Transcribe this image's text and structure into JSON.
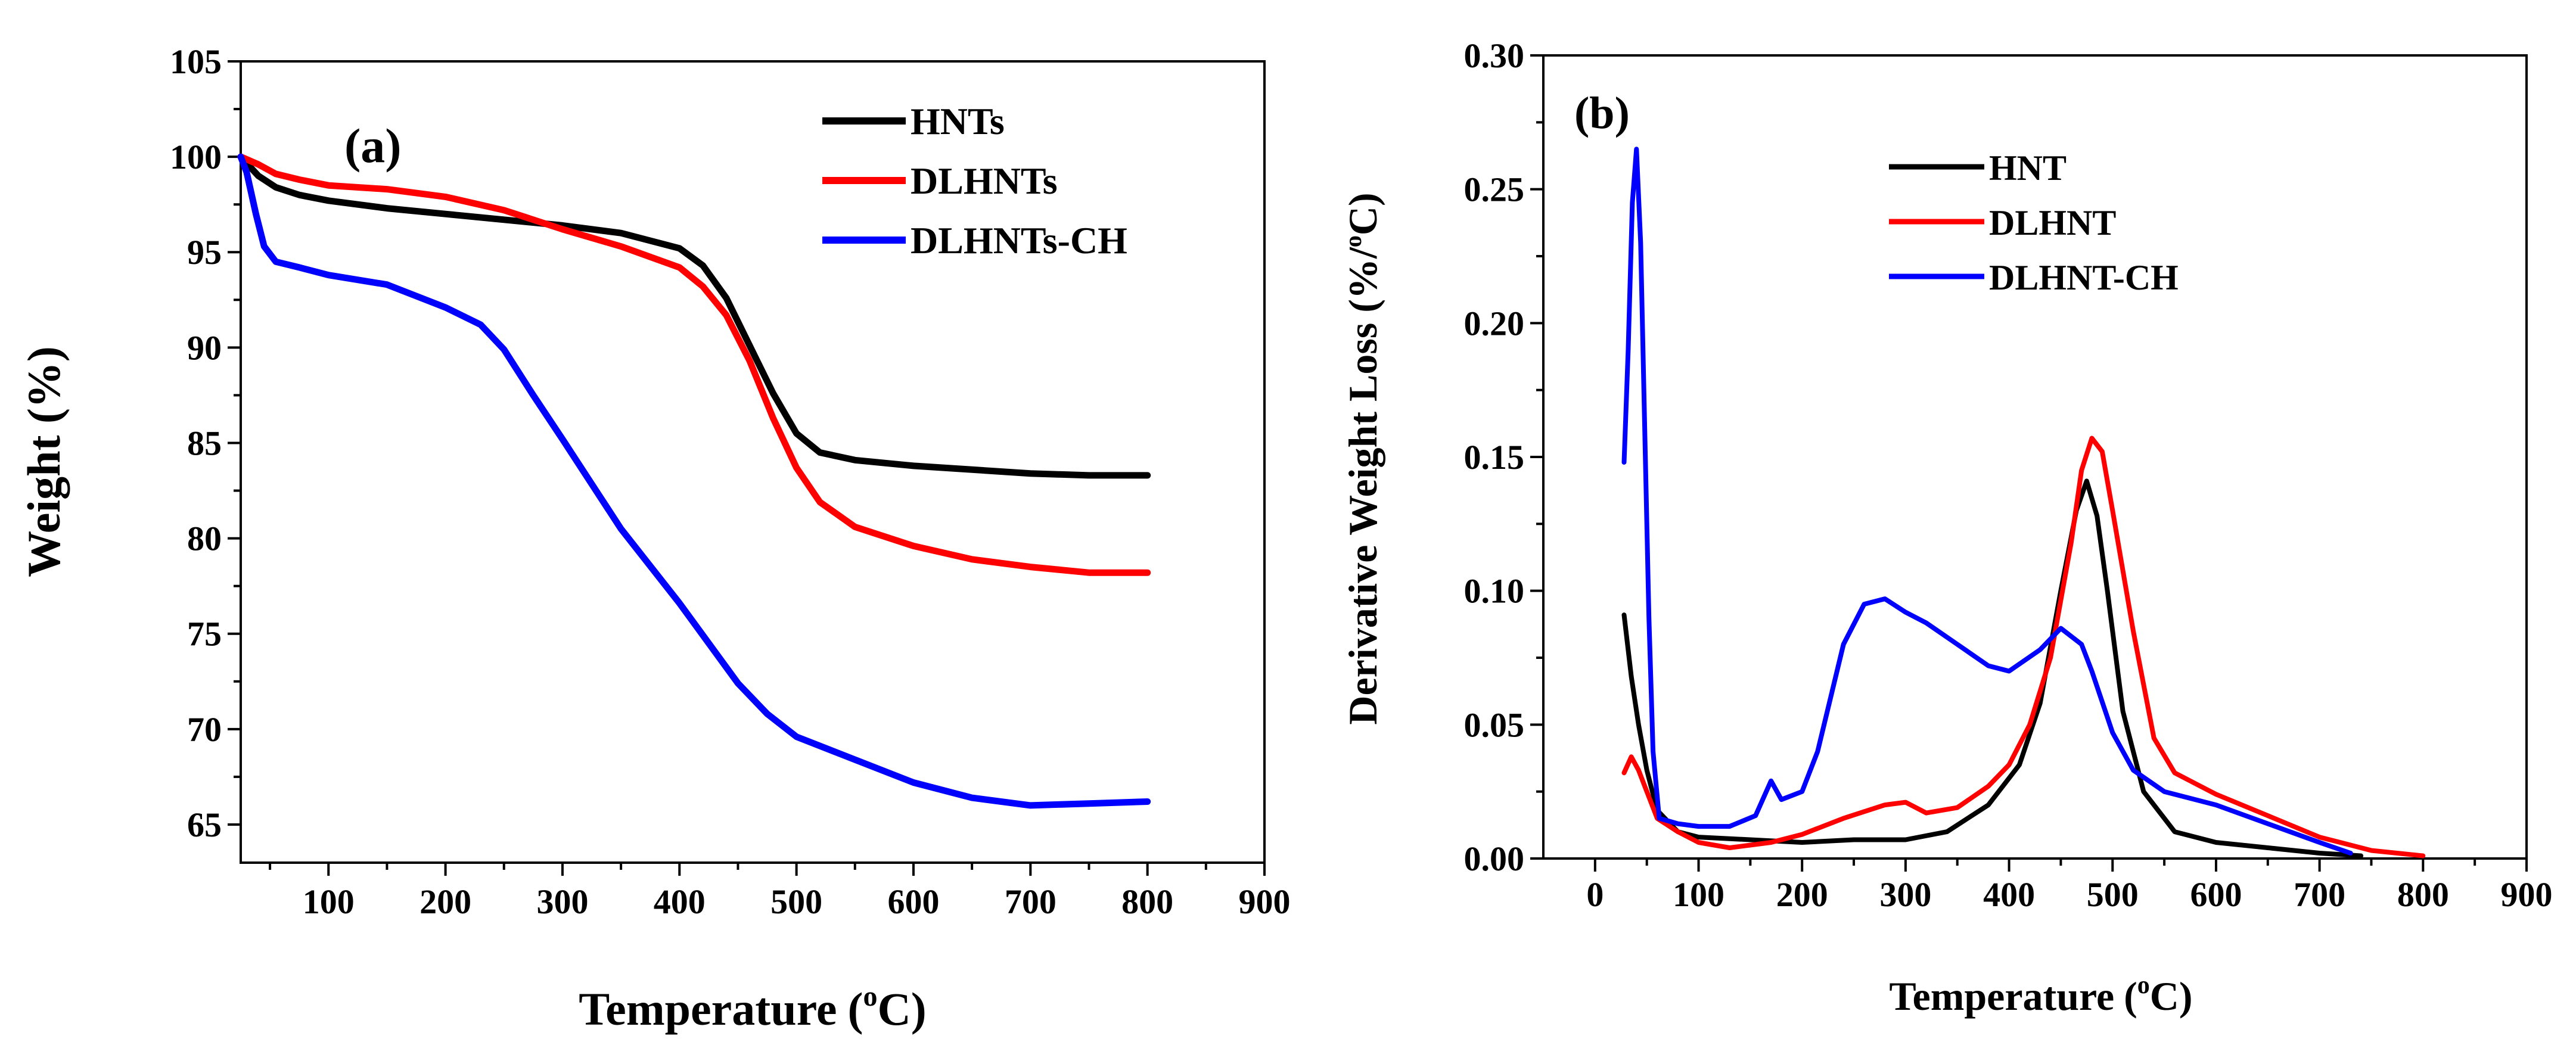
{
  "chart_data": [
    {
      "panel": "(a)",
      "type": "line",
      "xlabel_main": "Temperature",
      "xlabel_unit": "(",
      "xlabel_degree": "o",
      "xlabel_unit_end": "C)",
      "ylabel": "Weight (%)",
      "xlim": [
        25,
        900
      ],
      "ylim": [
        63,
        105
      ],
      "xticks": [
        "100",
        "200",
        "300",
        "400",
        "500",
        "600",
        "700",
        "800",
        "900"
      ],
      "yticks": [
        "65",
        "70",
        "75",
        "80",
        "85",
        "90",
        "95",
        "100",
        "105"
      ],
      "legend_position": "top-right",
      "series": [
        {
          "name": "HNTs",
          "color": "#000000",
          "x": [
            25,
            40,
            55,
            75,
            100,
            150,
            200,
            250,
            300,
            350,
            400,
            420,
            440,
            460,
            480,
            500,
            520,
            550,
            600,
            650,
            700,
            750,
            800
          ],
          "y": [
            100,
            99.0,
            98.4,
            98.0,
            97.7,
            97.3,
            97.0,
            96.7,
            96.4,
            96.0,
            95.2,
            94.3,
            92.6,
            90.1,
            87.6,
            85.5,
            84.5,
            84.1,
            83.8,
            83.6,
            83.4,
            83.3,
            83.3
          ]
        },
        {
          "name": "DLHNTs",
          "color": "#ff0000",
          "x": [
            25,
            40,
            55,
            75,
            100,
            150,
            200,
            250,
            300,
            350,
            400,
            420,
            440,
            460,
            480,
            500,
            520,
            550,
            600,
            650,
            700,
            750,
            800
          ],
          "y": [
            100,
            99.6,
            99.1,
            98.8,
            98.5,
            98.3,
            97.9,
            97.2,
            96.2,
            95.3,
            94.2,
            93.2,
            91.7,
            89.3,
            86.3,
            83.7,
            81.9,
            80.6,
            79.6,
            78.9,
            78.5,
            78.2,
            78.2
          ]
        },
        {
          "name": "DLHNTs-CH",
          "color": "#0000ff",
          "x": [
            25,
            30,
            38,
            45,
            55,
            75,
            100,
            150,
            200,
            230,
            250,
            275,
            300,
            350,
            400,
            450,
            475,
            500,
            550,
            600,
            650,
            700,
            750,
            800
          ],
          "y": [
            100,
            99.2,
            97.0,
            95.3,
            94.5,
            94.2,
            93.8,
            93.3,
            92.1,
            91.2,
            89.9,
            87.5,
            85.2,
            80.5,
            76.6,
            72.4,
            70.8,
            69.6,
            68.4,
            67.2,
            66.4,
            66.0,
            66.1,
            66.2
          ]
        }
      ]
    },
    {
      "panel": "(b)",
      "type": "line",
      "xlabel_main": "Temperature",
      "xlabel_unit": "(",
      "xlabel_degree": "o",
      "xlabel_unit_end": "C)",
      "ylabel": "Derivative Weight Loss (%/",
      "ylabel_degree": "o",
      "ylabel_end": "C)",
      "xlim": [
        -50,
        900
      ],
      "ylim": [
        0,
        0.3
      ],
      "xticks": [
        "0",
        "100",
        "200",
        "300",
        "400",
        "500",
        "600",
        "700",
        "800",
        "900"
      ],
      "yticks": [
        "0.00",
        "0.05",
        "0.10",
        "0.15",
        "0.20",
        "0.25",
        "0.30"
      ],
      "legend_position": "top-center",
      "series": [
        {
          "name": "HNT",
          "color": "#000000",
          "x": [
            28,
            35,
            42,
            50,
            60,
            80,
            100,
            150,
            200,
            250,
            300,
            340,
            380,
            410,
            430,
            450,
            465,
            475,
            485,
            495,
            510,
            530,
            560,
            600,
            650,
            700,
            740
          ],
          "y": [
            0.091,
            0.068,
            0.05,
            0.033,
            0.018,
            0.01,
            0.008,
            0.007,
            0.006,
            0.007,
            0.007,
            0.01,
            0.02,
            0.035,
            0.058,
            0.1,
            0.13,
            0.141,
            0.128,
            0.1,
            0.055,
            0.025,
            0.01,
            0.006,
            0.004,
            0.002,
            0.001
          ]
        },
        {
          "name": "DLHNT",
          "color": "#ff0000",
          "x": [
            28,
            35,
            42,
            50,
            60,
            80,
            100,
            130,
            170,
            200,
            240,
            280,
            300,
            320,
            350,
            380,
            400,
            420,
            440,
            460,
            470,
            480,
            490,
            500,
            520,
            540,
            560,
            600,
            650,
            700,
            750,
            800
          ],
          "y": [
            0.032,
            0.038,
            0.033,
            0.025,
            0.015,
            0.01,
            0.006,
            0.004,
            0.006,
            0.009,
            0.015,
            0.02,
            0.021,
            0.017,
            0.019,
            0.027,
            0.035,
            0.05,
            0.075,
            0.118,
            0.145,
            0.157,
            0.152,
            0.13,
            0.085,
            0.045,
            0.032,
            0.024,
            0.016,
            0.008,
            0.003,
            0.001
          ]
        },
        {
          "name": "DLHNT-CH",
          "color": "#0000ff",
          "x": [
            28,
            32,
            36,
            40,
            44,
            48,
            52,
            56,
            62,
            80,
            100,
            130,
            155,
            170,
            180,
            200,
            215,
            240,
            260,
            280,
            300,
            320,
            350,
            380,
            400,
            430,
            450,
            470,
            480,
            500,
            520,
            550,
            600,
            650,
            700,
            730
          ],
          "y": [
            0.148,
            0.19,
            0.245,
            0.265,
            0.23,
            0.16,
            0.09,
            0.04,
            0.015,
            0.013,
            0.012,
            0.012,
            0.016,
            0.029,
            0.022,
            0.025,
            0.04,
            0.08,
            0.095,
            0.097,
            0.092,
            0.088,
            0.08,
            0.072,
            0.07,
            0.078,
            0.086,
            0.08,
            0.07,
            0.047,
            0.033,
            0.025,
            0.02,
            0.013,
            0.006,
            0.002
          ]
        }
      ]
    }
  ]
}
